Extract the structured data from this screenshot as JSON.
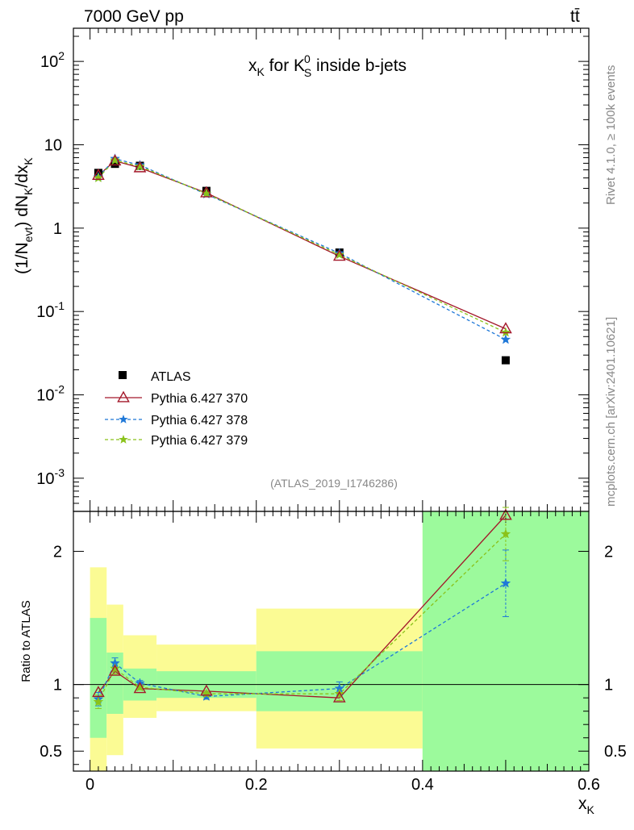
{
  "header": {
    "left_title": "7000 GeV pp",
    "right_title": "tt̄",
    "side_label_top": "Rivet 4.1.0, ≥ 100k events",
    "side_label_bottom": "mcplots.cern.ch [arXiv:2401.10621]"
  },
  "chart_data": [
    {
      "type": "line",
      "panel": "main",
      "title": "x_K for K_S^0 inside b-jets",
      "ylabel": "(1/N_evt) dN_K/dx_K",
      "y_scale": "log",
      "ylim": [
        0.0004,
        250
      ],
      "xlim": [
        -0.02,
        0.6
      ],
      "y_ticks": [
        {
          "label": "10^-3"
        },
        {
          "label": "10^-2"
        },
        {
          "label": "10^-1"
        },
        {
          "label": "1"
        },
        {
          "label": "10"
        },
        {
          "label": "10^2"
        }
      ],
      "analysis_label": "(ATLAS_2019_I1746286)",
      "x": [
        0.01,
        0.03,
        0.06,
        0.14,
        0.3,
        0.5
      ],
      "series": [
        {
          "name": "ATLAS",
          "color": "#000000",
          "marker": "square",
          "line": "none",
          "values": [
            4.6,
            5.9,
            5.6,
            2.8,
            0.51,
            0.026
          ]
        },
        {
          "name": "Pythia 6.427 370",
          "color": "#a3182a",
          "marker": "open-triangle",
          "line": "solid",
          "values": [
            4.3,
            6.4,
            5.3,
            2.65,
            0.46,
            0.062
          ]
        },
        {
          "name": "Pythia 6.427 378",
          "color": "#1f78d8",
          "marker": "star",
          "line": "dashed",
          "values": [
            4.1,
            6.8,
            5.7,
            2.55,
            0.5,
            0.046
          ]
        },
        {
          "name": "Pythia 6.427 379",
          "color": "#8ac21a",
          "marker": "star",
          "line": "dashed",
          "values": [
            4.0,
            6.5,
            5.5,
            2.6,
            0.48,
            0.056
          ]
        }
      ]
    },
    {
      "type": "line",
      "panel": "ratio",
      "ylabel": "Ratio to ATLAS",
      "xlabel": "x_K",
      "ylim": [
        0.35,
        2.3
      ],
      "xlim": [
        -0.02,
        0.6
      ],
      "y_ticks": [
        "0.5",
        "1",
        "2"
      ],
      "x_ticks": [
        "0",
        "0.2",
        "0.4",
        "0.6"
      ],
      "band_bins": [
        {
          "x0": 0.0,
          "x1": 0.02,
          "stat_lo": 0.6,
          "stat_hi": 1.5,
          "tot_lo": 0.3,
          "tot_hi": 1.88
        },
        {
          "x0": 0.02,
          "x1": 0.04,
          "stat_lo": 0.78,
          "stat_hi": 1.24,
          "tot_lo": 0.47,
          "tot_hi": 1.6
        },
        {
          "x0": 0.04,
          "x1": 0.08,
          "stat_lo": 0.88,
          "stat_hi": 1.12,
          "tot_lo": 0.75,
          "tot_hi": 1.37
        },
        {
          "x0": 0.08,
          "x1": 0.2,
          "stat_lo": 0.9,
          "stat_hi": 1.1,
          "tot_lo": 0.8,
          "tot_hi": 1.3
        },
        {
          "x0": 0.2,
          "x1": 0.4,
          "stat_lo": 0.8,
          "stat_hi": 1.25,
          "tot_lo": 0.52,
          "tot_hi": 1.57
        },
        {
          "x0": 0.4,
          "x1": 0.6,
          "stat_lo": 0.3,
          "stat_hi": 2.3,
          "tot_lo": 0.3,
          "tot_hi": 2.3
        }
      ],
      "x": [
        0.01,
        0.03,
        0.06,
        0.14,
        0.3,
        0.5
      ],
      "series": [
        {
          "name": "Pythia 6.427 370",
          "color": "#a3182a",
          "marker": "open-triangle",
          "line": "solid",
          "values": [
            0.94,
            1.1,
            0.97,
            0.95,
            0.9,
            2.27
          ]
        },
        {
          "name": "Pythia 6.427 378",
          "color": "#1f78d8",
          "marker": "star",
          "line": "dashed",
          "values": [
            0.89,
            1.16,
            1.01,
            0.91,
            0.97,
            1.76
          ],
          "err": [
            0.05,
            0.04,
            0.02,
            0.02,
            0.05,
            0.25
          ]
        },
        {
          "name": "Pythia 6.427 379",
          "color": "#8ac21a",
          "marker": "star",
          "line": "dashed",
          "values": [
            0.87,
            1.12,
            0.98,
            0.93,
            0.93,
            2.13
          ],
          "err": [
            0.05,
            0.04,
            0.02,
            0.02,
            0.05,
            0.2
          ]
        }
      ]
    }
  ],
  "colors": {
    "stat_band": "#9cfa9c",
    "total_band": "#fbfb94",
    "frame": "#000000",
    "gray_text": "#888888"
  }
}
